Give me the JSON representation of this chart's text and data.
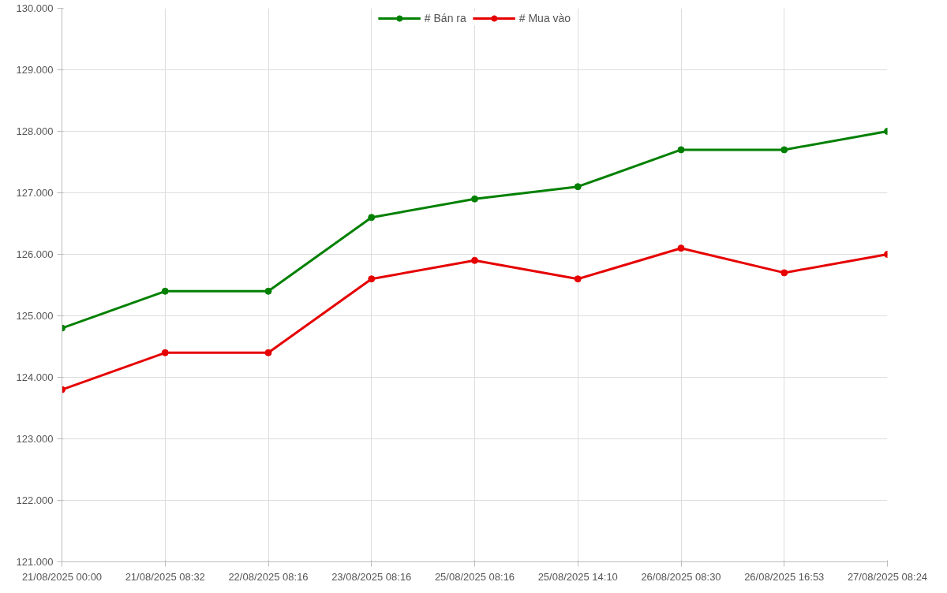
{
  "chart_data": {
    "type": "line",
    "categories": [
      "21/08/2025 00:00",
      "21/08/2025 08:32",
      "22/08/2025 08:16",
      "23/08/2025 08:16",
      "25/08/2025 08:16",
      "25/08/2025 14:10",
      "26/08/2025 08:30",
      "26/08/2025 16:53",
      "27/08/2025 08:24"
    ],
    "series": [
      {
        "name": "# Bán ra",
        "color": "#008000",
        "values": [
          124800,
          125400,
          125400,
          126600,
          126900,
          127100,
          127700,
          127700,
          128000
        ]
      },
      {
        "name": "# Mua vào",
        "color": "#e60000",
        "values": [
          123800,
          124400,
          124400,
          125600,
          125900,
          125600,
          126100,
          125700,
          126000
        ]
      }
    ],
    "ylim": [
      121000,
      130000
    ],
    "yticks": [
      {
        "value": 121000,
        "label": "121.000"
      },
      {
        "value": 122000,
        "label": "122.000"
      },
      {
        "value": 123000,
        "label": "123.000"
      },
      {
        "value": 124000,
        "label": "124.000"
      },
      {
        "value": 125000,
        "label": "125.000"
      },
      {
        "value": 126000,
        "label": "126.000"
      },
      {
        "value": 127000,
        "label": "127.000"
      },
      {
        "value": 128000,
        "label": "128.000"
      },
      {
        "value": 129000,
        "label": "129.000"
      },
      {
        "value": 130000,
        "label": "130.000"
      }
    ],
    "grid": true,
    "legend": "top",
    "marker": "circle",
    "line_style": "solid"
  }
}
